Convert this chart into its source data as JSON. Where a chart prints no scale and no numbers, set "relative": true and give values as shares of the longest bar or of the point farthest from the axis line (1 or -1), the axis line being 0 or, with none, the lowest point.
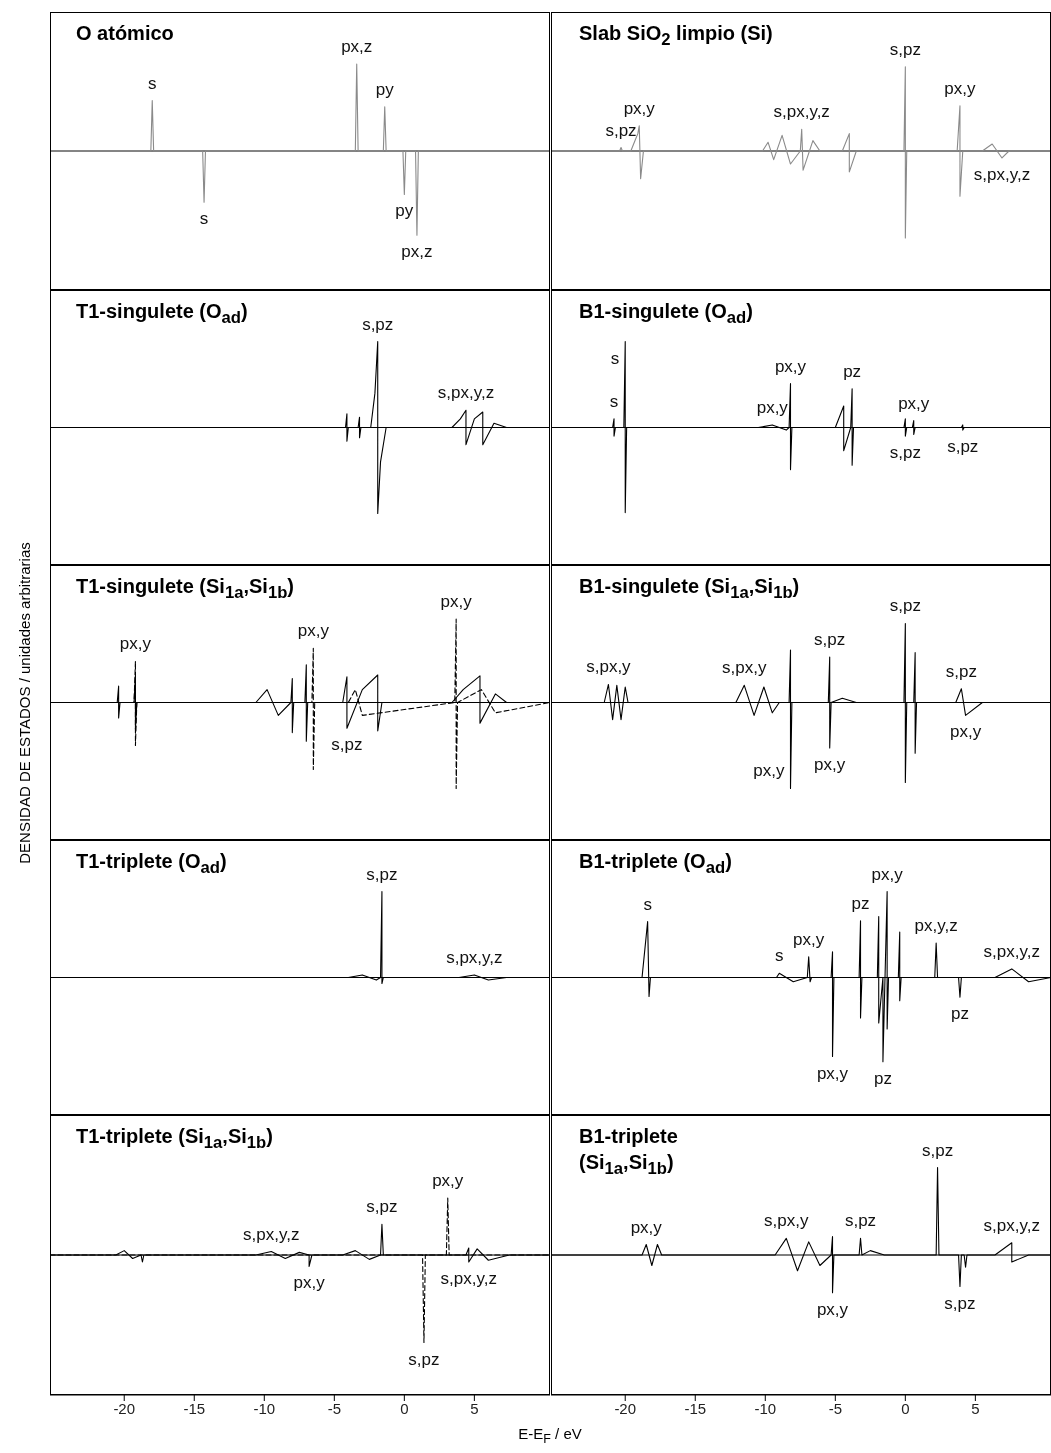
{
  "chart_data": [
    {
      "type": "line",
      "title": "O atómico",
      "relative": true,
      "xlim": [
        -25.3,
        10.4
      ],
      "tick_labels": false,
      "series": [
        {
          "color": "#8a8a8a",
          "x": [
            -25.3,
            -18.1,
            -18,
            -17.9,
            -14.4,
            -14.3,
            -14.2,
            -3.5,
            -3.4,
            -3.3,
            -1.5,
            -1.4,
            -1.3,
            -0.1,
            0,
            0.1,
            0.8,
            0.9,
            1.0,
            10.4
          ],
          "values": [
            0,
            0,
            0.58,
            0,
            0,
            -0.59,
            0,
            0,
            1,
            0,
            0,
            0.51,
            0,
            0,
            -0.5,
            0,
            0,
            -0.97,
            0,
            0
          ]
        }
      ],
      "annotations": [
        {
          "text": "s",
          "x": -18,
          "y": 0.58
        },
        {
          "text": "px,z",
          "x": -3.4,
          "y": 1
        },
        {
          "text": "py",
          "x": -1.4,
          "y": 0.51
        },
        {
          "text": "s",
          "x": -14.3,
          "y": -0.59
        },
        {
          "text": "py",
          "x": 0,
          "y": -0.5
        },
        {
          "text": "px,z",
          "x": 0.9,
          "y": -0.97
        }
      ]
    },
    {
      "type": "line",
      "title": "Slab SiO$_{2}$ limpio (Si)",
      "relative": true,
      "xlim": [
        -25.3,
        10.4
      ],
      "tick_labels": false,
      "series": [
        {
          "color": "#8a8a8a",
          "x": [
            -25.3,
            -20.4,
            -20.3,
            -20.2,
            -19.6,
            -19.3,
            -19.1,
            -19.0,
            -18.9,
            -18.7,
            -10.2,
            -9.8,
            -9.4,
            -8.8,
            -8.2,
            -7.5,
            -7.4,
            -7.3,
            -6.6,
            -6.1,
            -4.5,
            -4.0,
            -4.0,
            -3.5,
            -2.8,
            -0.1,
            0,
            0,
            0.1,
            3.7,
            3.9,
            3.9,
            4.1,
            5.5,
            6.2,
            6.9,
            7.4,
            10.4
          ],
          "values": [
            0,
            0,
            0.04,
            0,
            0,
            0.12,
            0.2,
            0.29,
            -0.32,
            0,
            0,
            0.1,
            -0.1,
            0.18,
            -0.15,
            0,
            0.25,
            -0.22,
            0.12,
            0,
            0,
            0.2,
            -0.24,
            0,
            0,
            0,
            0.97,
            -1,
            0,
            0,
            0.52,
            -0.52,
            0,
            0,
            0.08,
            -0.08,
            0,
            0
          ]
        }
      ],
      "annotations": [
        {
          "text": "s,pz",
          "x": -20.3,
          "y": 0.04
        },
        {
          "text": "px,y",
          "x": -19.0,
          "y": 0.29
        },
        {
          "text": "s,px,y,z",
          "x": -7.4,
          "y": 0.25
        },
        {
          "text": "s,pz",
          "x": 0,
          "y": 0.97
        },
        {
          "text": "px,y",
          "x": 3.9,
          "y": 0.52
        },
        {
          "text": "s,px,y,z",
          "x": 6.9,
          "y": -0.08
        }
      ]
    },
    {
      "type": "line",
      "title": "T1-singulete (O$_{ad}$)",
      "relative": true,
      "xlim": [
        -25.3,
        10.4
      ],
      "tick_labels": false,
      "series": [
        {
          "color": "#000000",
          "x": [
            -25.3,
            -4.2,
            -4.1,
            -4.1,
            -4.0,
            -3.3,
            -3.2,
            -3.2,
            -3.1,
            -2.4,
            -2.1,
            -1.9,
            -1.9,
            -1.7,
            -1.3,
            3.4,
            4.0,
            4.4,
            4.4,
            5.0,
            5.6,
            5.6,
            6.4,
            7.3,
            10.4
          ],
          "values": [
            0,
            0,
            0.16,
            -0.16,
            0,
            0,
            0.12,
            -0.12,
            0,
            0,
            0.4,
            1,
            -1,
            -0.4,
            0,
            0,
            0.1,
            0.2,
            -0.2,
            0.1,
            0.18,
            -0.2,
            0.05,
            0,
            0
          ]
        }
      ],
      "annotations": [
        {
          "text": "s,pz",
          "x": -1.9,
          "y": 1
        },
        {
          "text": "s,px,y,z",
          "x": 4.4,
          "y": 0.2
        }
      ]
    },
    {
      "type": "line",
      "title": "B1-singulete (O$_{ad}$)",
      "relative": true,
      "xlim": [
        -25.3,
        10.4
      ],
      "tick_labels": false,
      "series": [
        {
          "color": "#000000",
          "x": [
            -25.3,
            -20.9,
            -20.8,
            -20.8,
            -20.7,
            -20.1,
            -20,
            -20,
            -19.9,
            -10.5,
            -9.5,
            -8.5,
            -8.3,
            -8.2,
            -8.2,
            -8.1,
            -5,
            -4.4,
            -4.4,
            -3.9,
            -3.8,
            -3.8,
            -3.7,
            -3.3,
            -0.1,
            0,
            0,
            0.1,
            0.5,
            0.6,
            0.6,
            0.7,
            4.0,
            4.1,
            4.1,
            4.2,
            10.4
          ],
          "values": [
            0,
            0,
            0.1,
            -0.1,
            0,
            0,
            1,
            -0.99,
            0,
            0,
            0.03,
            -0.03,
            0,
            0.51,
            -0.49,
            0,
            0,
            0.25,
            -0.27,
            0,
            0.45,
            -0.44,
            0,
            0,
            0,
            0.1,
            -0.1,
            0,
            0,
            0.08,
            -0.08,
            0,
            0,
            0.03,
            -0.03,
            0,
            0
          ]
        }
      ],
      "annotations": [
        {
          "text": "s",
          "x": -20.8,
          "y": 0.1
        },
        {
          "text": "s",
          "x": -20,
          "y": 1
        },
        {
          "text": "px,y",
          "x": -9.5,
          "y": 0.03
        },
        {
          "text": "px,y",
          "x": -8.2,
          "y": 0.51
        },
        {
          "text": "pz",
          "x": -3.8,
          "y": 0.45
        },
        {
          "text": "px,y",
          "x": 0.6,
          "y": 0.08
        },
        {
          "text": "s,pz",
          "x": 0,
          "y": -0.1
        },
        {
          "text": "s,pz",
          "x": 4.1,
          "y": -0.03
        }
      ]
    },
    {
      "type": "line",
      "title": "T1-singulete (Si$_{1a}$,Si$_{1b}$)",
      "relative": true,
      "xlim": [
        -25.3,
        10.4
      ],
      "tick_labels": false,
      "ylabel": "DENSIDAD DE ESTADOS / unidades arbitrarias",
      "series": [
        {
          "color": "#000000",
          "x": [
            -25.3,
            -20.5,
            -20.4,
            -20.4,
            -20.3,
            -19.3,
            -19.2,
            -19.2,
            -19.1,
            -10.6,
            -9.8,
            -9.0,
            -8.1,
            -8.0,
            -8.0,
            -7.9,
            -7.1,
            -7.0,
            -7.0,
            -6.9,
            -4.4,
            -4.1,
            -4.1,
            -3.0,
            -1.9,
            -1.9,
            -1.6,
            3.4,
            4.2,
            5.4,
            5.4,
            6.5,
            7.3,
            10.4
          ],
          "values": [
            0,
            0,
            0.19,
            -0.18,
            0,
            0,
            0.31,
            -0.31,
            0,
            0,
            0.15,
            -0.15,
            0,
            0.28,
            -0.35,
            0,
            0,
            0.44,
            -0.45,
            0,
            0,
            0.3,
            -0.3,
            0.15,
            0.32,
            -0.33,
            0,
            0,
            0.15,
            0.31,
            -0.24,
            0.1,
            0,
            0
          ]
        },
        {
          "color": "#000000",
          "line_style": "dashed",
          "x": [
            -25.3,
            -19.3,
            -19.2,
            -19.2,
            -19.1,
            -6.6,
            -6.5,
            -6.5,
            -6.4,
            -4,
            -3.5,
            -3,
            3.6,
            3.7,
            3.7,
            3.8,
            5.5,
            6.5,
            10.4
          ],
          "values": [
            0,
            0,
            0.48,
            -0.5,
            0,
            0,
            0.63,
            -0.78,
            0,
            0,
            0.15,
            -0.15,
            0,
            0.97,
            -1,
            0,
            0.15,
            -0.12,
            0
          ]
        }
      ],
      "annotations": [
        {
          "text": "px,y",
          "x": -19.2,
          "y": 0.48
        },
        {
          "text": "px,y",
          "x": -6.5,
          "y": 0.63
        },
        {
          "text": "s,pz",
          "x": -4.1,
          "y": -0.3
        },
        {
          "text": "px,y",
          "x": 3.7,
          "y": 0.97
        }
      ]
    },
    {
      "type": "line",
      "title": "B1-singulete (Si$_{1a}$,Si$_{1b}$)",
      "relative": true,
      "xlim": [
        -25.3,
        10.4
      ],
      "tick_labels": false,
      "series": [
        {
          "color": "#000000",
          "x": [
            -25.3,
            -21.5,
            -21.2,
            -20.9,
            -20.6,
            -20.3,
            -20,
            -19.8,
            -12.1,
            -11.5,
            -10.8,
            -10.1,
            -9.5,
            -9.0,
            -8.3,
            -8.2,
            -8.2,
            -8.1,
            -5.5,
            -5.4,
            -5.4,
            -5.3,
            -4.5,
            -3.5,
            -0.1,
            0,
            0,
            0.1,
            0.6,
            0.7,
            0.7,
            0.8,
            3.6,
            4.0,
            4.3,
            5.5,
            10.4
          ],
          "values": [
            0,
            0,
            0.21,
            -0.2,
            0.2,
            -0.2,
            0.18,
            0,
            0,
            0.2,
            -0.15,
            0.18,
            -0.12,
            0,
            0,
            0.61,
            -1,
            0,
            0,
            0.53,
            -0.53,
            0,
            0.05,
            0,
            0,
            0.92,
            -0.93,
            0,
            0,
            0.58,
            -0.59,
            0,
            0,
            0.16,
            -0.15,
            0,
            0
          ]
        }
      ],
      "annotations": [
        {
          "text": "s,px,y",
          "x": -21.2,
          "y": 0.21
        },
        {
          "text": "s,px,y",
          "x": -11.5,
          "y": 0.2
        },
        {
          "text": "s,pz",
          "x": -5.4,
          "y": 0.53
        },
        {
          "text": "px,y",
          "x": -5.4,
          "y": -0.53
        },
        {
          "text": "px,y",
          "x": -8.2,
          "y": -1
        },
        {
          "text": "s,pz",
          "x": 0,
          "y": 0.92
        },
        {
          "text": "s,pz",
          "x": 4.0,
          "y": 0.16
        },
        {
          "text": "px,y",
          "x": 4.3,
          "y": -0.15
        }
      ]
    },
    {
      "type": "line",
      "title": "T1-triplete (O$_{ad}$)",
      "relative": true,
      "xlim": [
        -25.3,
        10.4
      ],
      "tick_labels": false,
      "series": [
        {
          "color": "#000000",
          "x": [
            -25.3,
            -4.0,
            -3.0,
            -2.0,
            -1.7,
            -1.6,
            -1.6,
            -1.5,
            3.9,
            5.0,
            6.0,
            7.3,
            10.4
          ],
          "values": [
            0,
            0,
            0.03,
            -0.03,
            0,
            1,
            -0.07,
            0,
            0,
            0.03,
            -0.03,
            0,
            0
          ]
        }
      ],
      "annotations": [
        {
          "text": "s,pz",
          "x": -1.6,
          "y": 1
        },
        {
          "text": "s,px,y,z",
          "x": 5.0,
          "y": 0.03
        }
      ]
    },
    {
      "type": "line",
      "title": "B1-triplete (O$_{ad}$)",
      "relative": true,
      "xlim": [
        -25.3,
        10.4
      ],
      "tick_labels": false,
      "series": [
        {
          "color": "#000000",
          "x": [
            -25.3,
            -18.8,
            -18.4,
            -18.3,
            -18.2,
            -17.8,
            -9.2,
            -9.0,
            -8.0,
            -7.0,
            -6.9,
            -6.8,
            -6.7,
            -5.3,
            -5.2,
            -5.2,
            -5.1,
            -3.3,
            -3.2,
            -3.2,
            -3.1,
            -2.0,
            -1.9,
            -1.9,
            -1.6,
            -1.6,
            -1.3,
            -1.3,
            -1.2,
            -0.5,
            -0.4,
            -0.4,
            -0.3,
            2.1,
            2.2,
            2.3,
            3.8,
            3.9,
            4.0,
            6.4,
            7.6,
            8.8,
            10.4
          ],
          "values": [
            0,
            0,
            0.65,
            -0.22,
            0,
            0,
            0,
            0.05,
            -0.05,
            0,
            0.24,
            -0.05,
            0,
            0,
            0.3,
            -0.92,
            0,
            0,
            0.66,
            -0.47,
            0,
            0,
            0.71,
            -0.53,
            0,
            -0.98,
            1,
            -0.6,
            0,
            0,
            0.53,
            -0.27,
            0,
            0,
            0.4,
            0,
            0,
            -0.23,
            0,
            0,
            0.1,
            -0.05,
            0
          ]
        }
      ],
      "annotations": [
        {
          "text": "s",
          "x": -18.4,
          "y": 0.65
        },
        {
          "text": "s",
          "x": -9.0,
          "y": 0.05
        },
        {
          "text": "px,y",
          "x": -6.9,
          "y": 0.24
        },
        {
          "text": "pz",
          "x": -3.2,
          "y": 0.66
        },
        {
          "text": "px,y",
          "x": -1.3,
          "y": 1
        },
        {
          "text": "px,y,z",
          "x": 2.2,
          "y": 0.4
        },
        {
          "text": "s,px,y,z",
          "x": 7.6,
          "y": 0.1
        },
        {
          "text": "pz",
          "x": 3.9,
          "y": -0.23
        },
        {
          "text": "px,y",
          "x": -5.2,
          "y": -0.92
        },
        {
          "text": "pz",
          "x": -1.6,
          "y": -0.98
        }
      ]
    },
    {
      "type": "line",
      "title": "T1-triplete (Si$_{1a}$,Si$_{1b}$)",
      "relative": true,
      "xlim": [
        -25.3,
        10.4
      ],
      "xticks": [
        -20,
        -15,
        -10,
        -5,
        0,
        5
      ],
      "tick_labels": "x",
      "xlabel": "E-E$_{F}$ / eV",
      "series": [
        {
          "color": "#000000",
          "x": [
            -25.3,
            -20.6,
            -20,
            -19.4,
            -18.8,
            -18.7,
            -18.6,
            -10.6,
            -9.5,
            -8.5,
            -7.5,
            -6.8,
            -6.8,
            -6.6,
            -4.4,
            -3.5,
            -2.5,
            -1.7,
            -1.6,
            -1.5,
            4.4,
            4.6,
            4.6,
            5.2,
            6,
            7.5,
            10.4
          ],
          "values": [
            0,
            0,
            0.05,
            -0.04,
            0,
            -0.08,
            0,
            0,
            0.04,
            -0.04,
            0.03,
            0,
            -0.13,
            0,
            0,
            0.05,
            -0.05,
            0,
            0.35,
            0,
            0,
            0.08,
            -0.08,
            0.07,
            -0.06,
            0,
            0
          ]
        },
        {
          "color": "#000000",
          "line_style": "dashed",
          "x": [
            -25.3,
            1.3,
            1.4,
            1.5,
            3.0,
            3.1,
            3.2,
            10.4
          ],
          "values": [
            0,
            0,
            -1,
            0,
            0,
            0.65,
            0,
            0
          ]
        }
      ],
      "annotations": [
        {
          "text": "s,px,y,z",
          "x": -9.5,
          "y": 0.04
        },
        {
          "text": "s,pz",
          "x": -1.6,
          "y": 0.35
        },
        {
          "text": "px,y",
          "x": -6.8,
          "y": -0.13
        },
        {
          "text": "px,y",
          "x": 3.1,
          "y": 0.65
        },
        {
          "text": "s,px,y,z",
          "x": 4.6,
          "y": -0.08
        },
        {
          "text": "s,pz",
          "x": 1.4,
          "y": -1
        }
      ]
    },
    {
      "type": "line",
      "title": "B1-triplete\n(Si$_{1a}$,Si$_{1b}$)",
      "relative": true,
      "xlim": [
        -25.3,
        10.4
      ],
      "xticks": [
        -20,
        -15,
        -10,
        -5,
        0,
        5
      ],
      "tick_labels": "x",
      "series": [
        {
          "color": "#000000",
          "x": [
            -25.3,
            -18.8,
            -18.5,
            -18.1,
            -17.7,
            -17.4,
            -9.3,
            -8.5,
            -7.7,
            -6.9,
            -6.1,
            -5.3,
            -5.2,
            -5.2,
            -5.1,
            -3.3,
            -3.2,
            -3.1,
            -2.5,
            -1.5,
            2.2,
            2.3,
            2.4,
            3.8,
            3.9,
            4.0,
            4.2,
            4.3,
            4.4,
            6.4,
            7.6,
            7.6,
            8.8,
            10.4
          ],
          "values": [
            0,
            0,
            0.12,
            -0.12,
            0.12,
            0,
            0,
            0.19,
            -0.18,
            0.15,
            -0.12,
            0,
            0.21,
            -0.43,
            0,
            0,
            0.19,
            0,
            0.05,
            0,
            0,
            1,
            0,
            0,
            -0.36,
            0,
            0,
            -0.14,
            0,
            0,
            0.14,
            -0.08,
            0,
            0
          ]
        }
      ],
      "annotations": [
        {
          "text": "px,y",
          "x": -18.5,
          "y": 0.12
        },
        {
          "text": "s,px,y",
          "x": -8.5,
          "y": 0.19
        },
        {
          "text": "s,pz",
          "x": -3.2,
          "y": 0.19
        },
        {
          "text": "s,pz",
          "x": 2.3,
          "y": 1
        },
        {
          "text": "s,px,y,z",
          "x": 7.6,
          "y": 0.14
        },
        {
          "text": "px,y",
          "x": -5.2,
          "y": -0.43
        },
        {
          "text": "s,pz",
          "x": 3.9,
          "y": -0.36
        }
      ]
    }
  ]
}
